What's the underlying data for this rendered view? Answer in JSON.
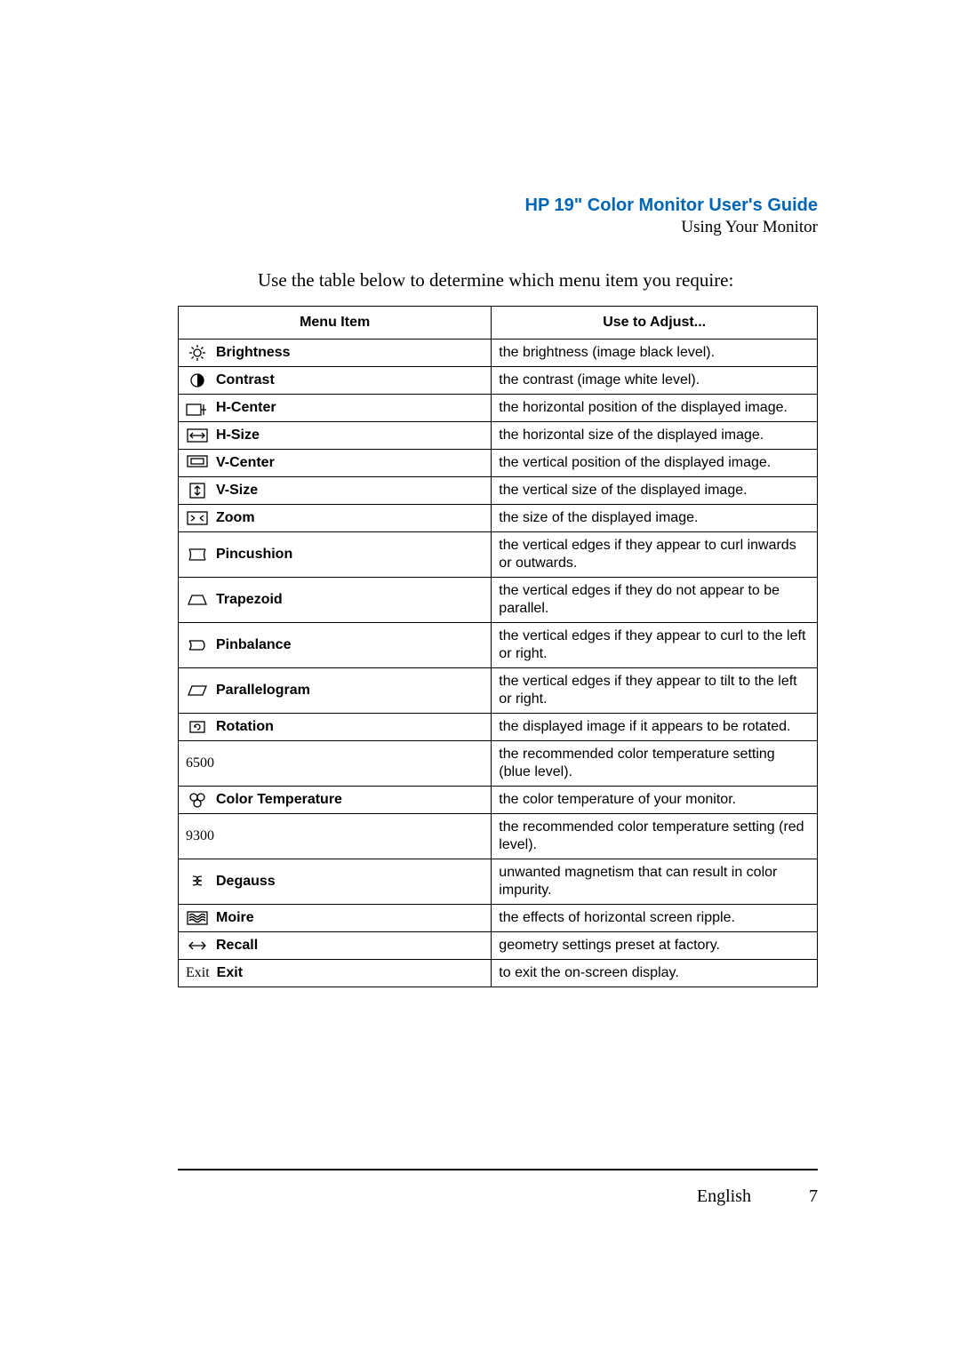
{
  "header": {
    "title": "HP 19\" Color Monitor User's Guide",
    "subtitle": "Using Your Monitor"
  },
  "intro": "Use the table below to determine which menu item you require:",
  "columns": {
    "menu": "Menu Item",
    "desc": "Use to Adjust..."
  },
  "rows": [
    {
      "icon": "brightness",
      "label": "Brightness",
      "plain": "",
      "desc": "the brightness (image black level)."
    },
    {
      "icon": "contrast",
      "label": "Contrast",
      "plain": "",
      "desc": "the contrast (image white level)."
    },
    {
      "icon": "hcenter",
      "label": "H-Center",
      "plain": "",
      "desc": "the horizontal position of the displayed image."
    },
    {
      "icon": "hsize",
      "label": "H-Size",
      "plain": "",
      "desc": "the horizontal size of the displayed image."
    },
    {
      "icon": "vcenter",
      "label": "V-Center",
      "plain": "",
      "desc": "the vertical position of the displayed image."
    },
    {
      "icon": "vsize",
      "label": "V-Size",
      "plain": "",
      "desc": "the vertical size of the displayed image."
    },
    {
      "icon": "zoom",
      "label": "Zoom",
      "plain": "",
      "desc": "the size of the displayed image."
    },
    {
      "icon": "pincushion",
      "label": "Pincushion",
      "plain": "",
      "desc": "the vertical edges if they appear to curl inwards or outwards."
    },
    {
      "icon": "trapezoid",
      "label": "Trapezoid",
      "plain": "",
      "desc": "the vertical edges if they do not appear to be parallel."
    },
    {
      "icon": "pinbalance",
      "label": "Pinbalance",
      "plain": "",
      "desc": "the vertical edges if they appear to curl to the left or right."
    },
    {
      "icon": "parallelogram",
      "label": "Parallelogram",
      "plain": "",
      "desc": "the vertical edges if they appear to tilt to the left or right."
    },
    {
      "icon": "rotation",
      "label": "Rotation",
      "plain": "",
      "desc": "the displayed image if it appears to be rotated."
    },
    {
      "icon": "",
      "label": "",
      "plain": "6500",
      "desc": "the recommended color temperature setting (blue level)."
    },
    {
      "icon": "colortemp",
      "label": "Color Temperature",
      "plain": "",
      "desc": "the color temperature of your monitor."
    },
    {
      "icon": "",
      "label": "",
      "plain": "9300",
      "desc": "the recommended color temperature setting (red level)."
    },
    {
      "icon": "degauss",
      "label": "Degauss",
      "plain": "",
      "desc": "unwanted magnetism that can result in color impurity."
    },
    {
      "icon": "moire",
      "label": "Moire",
      "plain": "",
      "desc": "the effects of horizontal screen ripple."
    },
    {
      "icon": "recall",
      "label": "Recall",
      "plain": "",
      "desc": "geometry settings preset at factory."
    },
    {
      "icon": "",
      "label": "Exit",
      "plain": "Exit",
      "desc": "to exit the on-screen display."
    }
  ],
  "footer": {
    "language": "English",
    "page": "7"
  },
  "colors": {
    "title": "#0066b3",
    "rule": "#000000",
    "text": "#000000",
    "bg": "#ffffff"
  }
}
